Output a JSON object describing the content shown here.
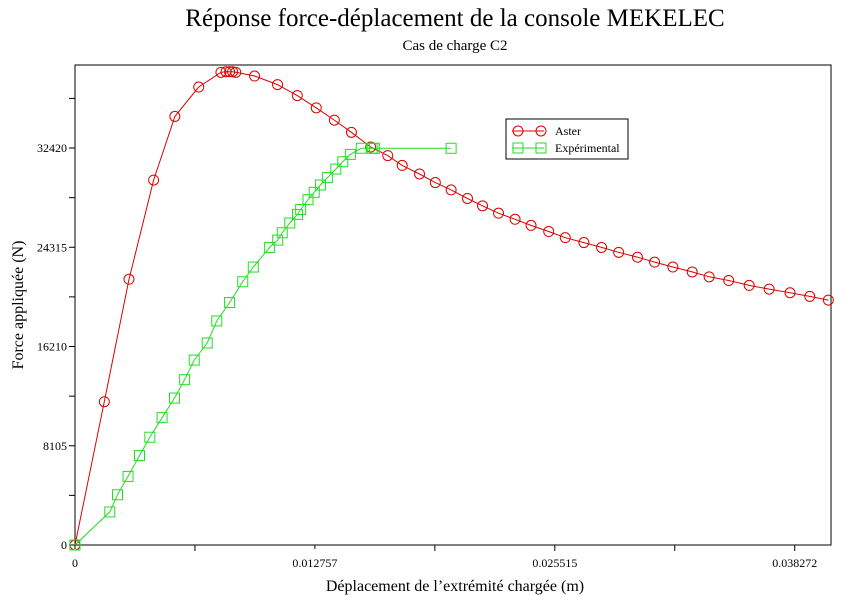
{
  "chart_data": {
    "type": "line",
    "title": "Réponse force-déplacement de la console MEKELEC",
    "subtitle": "Cas de charge C2",
    "xlabel": "Déplacement de l’extrémité chargée (m)",
    "ylabel": "Force appliquée (N)",
    "xlim": [
      0,
      0.0402
    ],
    "ylim": [
      0,
      39200
    ],
    "x_ticks": [
      0,
      0.012757,
      0.025515,
      0.038272
    ],
    "x_tick_labels": [
      "0",
      "0.012757",
      "0.025515",
      "0.038272"
    ],
    "y_ticks": [
      0,
      8105,
      16210,
      24315,
      32420
    ],
    "y_tick_labels": [
      "0",
      "8105",
      "16210",
      "24315",
      "32420"
    ],
    "grid": false,
    "legend_position": "top-right",
    "series": [
      {
        "name": "Aster",
        "color": "#dd0000",
        "marker": "circle",
        "x": [
          0,
          0.00156,
          0.00287,
          0.00418,
          0.00531,
          0.00658,
          0.00776,
          0.00803,
          0.00822,
          0.00838,
          0.00855,
          0.00955,
          0.01077,
          0.01182,
          0.01283,
          0.01379,
          0.0147,
          0.01572,
          0.01663,
          0.0174,
          0.01832,
          0.01916,
          0.02,
          0.02087,
          0.02167,
          0.02252,
          0.0234,
          0.02425,
          0.02519,
          0.02607,
          0.02706,
          0.028,
          0.02891,
          0.02991,
          0.03082,
          0.03179,
          0.03282,
          0.03372,
          0.03476,
          0.03585,
          0.03691,
          0.03802,
          0.03907,
          0.04006
        ],
        "y": [
          0,
          11700,
          21700,
          29800,
          35000,
          37400,
          38600,
          38650,
          38650,
          38650,
          38600,
          38300,
          37600,
          36700,
          35700,
          34700,
          33700,
          32500,
          31800,
          31000,
          30300,
          29600,
          29000,
          28300,
          27700,
          27100,
          26600,
          26100,
          25600,
          25100,
          24700,
          24300,
          23900,
          23500,
          23100,
          22700,
          22300,
          21900,
          21600,
          21200,
          20900,
          20600,
          20300,
          20000
        ]
      },
      {
        "name": "Expérimental",
        "color": "#22dd22",
        "marker": "square",
        "x": [
          0,
          0.00185,
          0.00226,
          0.00282,
          0.00343,
          0.00398,
          0.00463,
          0.00529,
          0.00583,
          0.00634,
          0.00703,
          0.00754,
          0.00822,
          0.00892,
          0.00948,
          0.01035,
          0.01078,
          0.01102,
          0.01142,
          0.01183,
          0.012,
          0.01239,
          0.01272,
          0.01305,
          0.01342,
          0.01387,
          0.01424,
          0.01464,
          0.01522,
          0.0158,
          0.01592,
          0.02
        ],
        "y": [
          0,
          2700,
          4100,
          5600,
          7300,
          8800,
          10400,
          12000,
          13500,
          15100,
          16500,
          18300,
          19800,
          21500,
          22700,
          24300,
          24900,
          25500,
          26300,
          27000,
          27400,
          28200,
          28800,
          29400,
          30000,
          30700,
          31300,
          31900,
          32400,
          32400,
          32400,
          32400
        ]
      }
    ]
  }
}
